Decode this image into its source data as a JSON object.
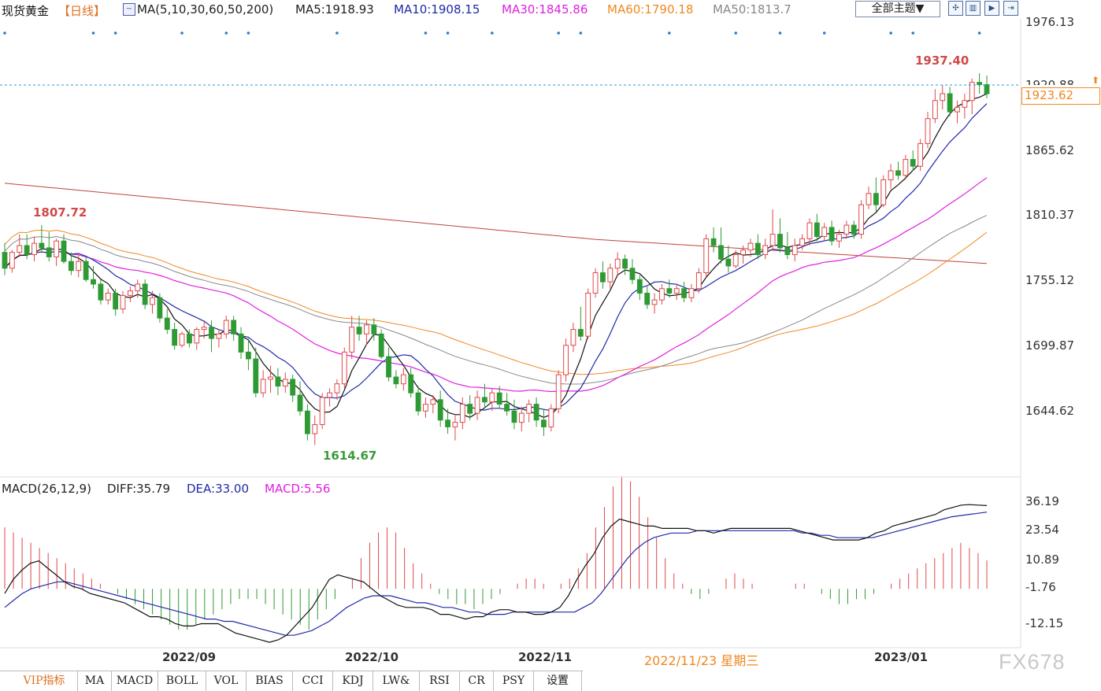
{
  "header": {
    "symbol": "现货黄金",
    "period": "【日线】",
    "ma_label": "MA(5,10,30,60,50,200)",
    "ma5": "MA5:1918.93",
    "ma10": "MA10:1908.15",
    "ma30": "MA30:1845.86",
    "ma60": "MA60:1790.18",
    "ma50": "MA50:1813.7",
    "theme_button": "全部主题▼"
  },
  "macd_header": {
    "label": "MACD(26,12,9)",
    "diff": "DIFF:35.79",
    "dea": "DEA:33.00",
    "macd": "MACD:5.56"
  },
  "colors": {
    "up": "#e0484a",
    "down": "#2e9a34",
    "ma5": "#111111",
    "ma10": "#1f2aa8",
    "ma30": "#e020e0",
    "ma60": "#f08820",
    "ma50": "#888888",
    "ma200": "#c0443a",
    "current_line": "#2a9ad0",
    "current_box": "#f08820"
  },
  "price_axis": {
    "ticks": [
      "1976.13",
      "1865.62",
      "1810.37",
      "1755.12",
      "1699.87",
      "1644.62"
    ],
    "min": 1590,
    "max": 1990
  },
  "current_price": "1923.62",
  "hidden_tick": "1920.88",
  "macd_axis": {
    "ticks": [
      "36.19",
      "23.54",
      "10.89",
      "-1.76",
      "-12.15"
    ],
    "min": -25,
    "max": 40
  },
  "x_labels": [
    "2022/09",
    "2022/10",
    "2022/11",
    "2023/01"
  ],
  "crosshair_date": "2022/11/23 星期三",
  "tabs": [
    "VIP指标",
    "MA",
    "MACD",
    "BOLL",
    "VOL",
    "BIAS",
    "CCI",
    "KDJ",
    "LW&",
    "RSI",
    "CR",
    "PSY",
    "设置"
  ],
  "watermark": "FX678",
  "chart_data": {
    "type": "candlestick",
    "annotations": [
      {
        "label": "1807.72",
        "value": 1807.72
      },
      {
        "label": "1614.67",
        "value": 1614.67
      },
      {
        "label": "1937.40",
        "value": 1937.4
      }
    ],
    "ohlc": [
      [
        1784,
        1792,
        1764,
        1770
      ],
      [
        1770,
        1786,
        1766,
        1784
      ],
      [
        1784,
        1800,
        1780,
        1790
      ],
      [
        1790,
        1800,
        1778,
        1782
      ],
      [
        1782,
        1798,
        1776,
        1792
      ],
      [
        1792,
        1808,
        1784,
        1788
      ],
      [
        1788,
        1802,
        1776,
        1780
      ],
      [
        1780,
        1796,
        1772,
        1794
      ],
      [
        1794,
        1800,
        1774,
        1776
      ],
      [
        1776,
        1784,
        1764,
        1768
      ],
      [
        1768,
        1782,
        1762,
        1776
      ],
      [
        1776,
        1780,
        1758,
        1760
      ],
      [
        1760,
        1772,
        1752,
        1756
      ],
      [
        1756,
        1760,
        1738,
        1742
      ],
      [
        1742,
        1752,
        1738,
        1748
      ],
      [
        1748,
        1752,
        1728,
        1734
      ],
      [
        1734,
        1750,
        1730,
        1746
      ],
      [
        1746,
        1754,
        1740,
        1750
      ],
      [
        1750,
        1760,
        1744,
        1756
      ],
      [
        1756,
        1760,
        1734,
        1738
      ],
      [
        1738,
        1750,
        1730,
        1744
      ],
      [
        1744,
        1748,
        1722,
        1726
      ],
      [
        1726,
        1734,
        1712,
        1716
      ],
      [
        1716,
        1722,
        1698,
        1702
      ],
      [
        1702,
        1714,
        1700,
        1712
      ],
      [
        1712,
        1716,
        1700,
        1704
      ],
      [
        1704,
        1718,
        1698,
        1716
      ],
      [
        1716,
        1724,
        1708,
        1718
      ],
      [
        1718,
        1724,
        1696,
        1708
      ],
      [
        1708,
        1716,
        1700,
        1712
      ],
      [
        1712,
        1728,
        1708,
        1724
      ],
      [
        1724,
        1728,
        1706,
        1712
      ],
      [
        1712,
        1718,
        1690,
        1696
      ],
      [
        1696,
        1708,
        1680,
        1690
      ],
      [
        1690,
        1700,
        1656,
        1660
      ],
      [
        1660,
        1680,
        1656,
        1672
      ],
      [
        1672,
        1684,
        1660,
        1674
      ],
      [
        1674,
        1682,
        1658,
        1666
      ],
      [
        1666,
        1678,
        1660,
        1672
      ],
      [
        1672,
        1676,
        1652,
        1658
      ],
      [
        1658,
        1670,
        1640,
        1644
      ],
      [
        1644,
        1650,
        1618,
        1624
      ],
      [
        1624,
        1640,
        1614,
        1632
      ],
      [
        1632,
        1660,
        1628,
        1656
      ],
      [
        1656,
        1664,
        1648,
        1660
      ],
      [
        1660,
        1672,
        1654,
        1668
      ],
      [
        1668,
        1700,
        1664,
        1696
      ],
      [
        1696,
        1728,
        1690,
        1718
      ],
      [
        1718,
        1728,
        1706,
        1712
      ],
      [
        1712,
        1724,
        1702,
        1720
      ],
      [
        1720,
        1726,
        1706,
        1712
      ],
      [
        1712,
        1716,
        1690,
        1692
      ],
      [
        1692,
        1700,
        1670,
        1674
      ],
      [
        1674,
        1680,
        1664,
        1668
      ],
      [
        1668,
        1682,
        1662,
        1676
      ],
      [
        1676,
        1682,
        1656,
        1660
      ],
      [
        1660,
        1666,
        1640,
        1644
      ],
      [
        1644,
        1656,
        1638,
        1650
      ],
      [
        1650,
        1658,
        1642,
        1654
      ],
      [
        1654,
        1662,
        1630,
        1636
      ],
      [
        1636,
        1646,
        1624,
        1630
      ],
      [
        1630,
        1640,
        1618,
        1634
      ],
      [
        1634,
        1656,
        1628,
        1650
      ],
      [
        1650,
        1658,
        1636,
        1642
      ],
      [
        1642,
        1662,
        1636,
        1656
      ],
      [
        1656,
        1668,
        1646,
        1652
      ],
      [
        1652,
        1664,
        1644,
        1660
      ],
      [
        1660,
        1666,
        1646,
        1650
      ],
      [
        1650,
        1660,
        1640,
        1644
      ],
      [
        1644,
        1654,
        1628,
        1634
      ],
      [
        1634,
        1648,
        1626,
        1642
      ],
      [
        1642,
        1654,
        1634,
        1650
      ],
      [
        1650,
        1656,
        1630,
        1636
      ],
      [
        1636,
        1646,
        1622,
        1630
      ],
      [
        1630,
        1650,
        1626,
        1646
      ],
      [
        1646,
        1680,
        1642,
        1676
      ],
      [
        1676,
        1708,
        1670,
        1702
      ],
      [
        1702,
        1722,
        1696,
        1716
      ],
      [
        1716,
        1736,
        1706,
        1710
      ],
      [
        1710,
        1752,
        1708,
        1748
      ],
      [
        1748,
        1770,
        1744,
        1766
      ],
      [
        1766,
        1776,
        1752,
        1758
      ],
      [
        1758,
        1774,
        1752,
        1770
      ],
      [
        1770,
        1784,
        1764,
        1778
      ],
      [
        1778,
        1782,
        1764,
        1770
      ],
      [
        1770,
        1778,
        1756,
        1760
      ],
      [
        1760,
        1764,
        1742,
        1748
      ],
      [
        1748,
        1754,
        1734,
        1738
      ],
      [
        1738,
        1748,
        1730,
        1742
      ],
      [
        1742,
        1756,
        1738,
        1752
      ],
      [
        1752,
        1760,
        1744,
        1748
      ],
      [
        1748,
        1756,
        1742,
        1752
      ],
      [
        1752,
        1758,
        1740,
        1744
      ],
      [
        1744,
        1756,
        1740,
        1752
      ],
      [
        1752,
        1770,
        1748,
        1766
      ],
      [
        1766,
        1800,
        1762,
        1796
      ],
      [
        1796,
        1806,
        1784,
        1790
      ],
      [
        1790,
        1806,
        1774,
        1778
      ],
      [
        1778,
        1790,
        1766,
        1772
      ],
      [
        1772,
        1786,
        1770,
        1782
      ],
      [
        1782,
        1790,
        1774,
        1786
      ],
      [
        1786,
        1796,
        1780,
        1792
      ],
      [
        1792,
        1800,
        1778,
        1782
      ],
      [
        1782,
        1796,
        1778,
        1790
      ],
      [
        1790,
        1822,
        1786,
        1800
      ],
      [
        1800,
        1814,
        1784,
        1788
      ],
      [
        1788,
        1802,
        1778,
        1782
      ],
      [
        1782,
        1796,
        1776,
        1790
      ],
      [
        1790,
        1800,
        1786,
        1796
      ],
      [
        1796,
        1814,
        1790,
        1810
      ],
      [
        1810,
        1818,
        1794,
        1798
      ],
      [
        1798,
        1810,
        1794,
        1806
      ],
      [
        1806,
        1812,
        1790,
        1794
      ],
      [
        1794,
        1804,
        1788,
        1800
      ],
      [
        1800,
        1812,
        1796,
        1808
      ],
      [
        1808,
        1812,
        1796,
        1800
      ],
      [
        1800,
        1830,
        1796,
        1826
      ],
      [
        1826,
        1842,
        1822,
        1836
      ],
      [
        1836,
        1850,
        1820,
        1826
      ],
      [
        1826,
        1852,
        1824,
        1848
      ],
      [
        1848,
        1862,
        1840,
        1856
      ],
      [
        1856,
        1864,
        1848,
        1852
      ],
      [
        1852,
        1870,
        1848,
        1866
      ],
      [
        1866,
        1874,
        1856,
        1860
      ],
      [
        1860,
        1884,
        1856,
        1880
      ],
      [
        1880,
        1908,
        1876,
        1902
      ],
      [
        1902,
        1928,
        1898,
        1918
      ],
      [
        1918,
        1932,
        1910,
        1924
      ],
      [
        1924,
        1930,
        1904,
        1908
      ],
      [
        1908,
        1918,
        1898,
        1912
      ],
      [
        1912,
        1924,
        1902,
        1918
      ],
      [
        1918,
        1937.4,
        1906,
        1934
      ],
      [
        1934,
        1942,
        1924,
        1932
      ],
      [
        1932,
        1940,
        1920,
        1924
      ]
    ],
    "diff": [
      -2,
      4,
      8,
      11,
      12,
      9,
      6,
      3,
      1,
      0,
      -2,
      -3,
      -4,
      -5,
      -6,
      -8,
      -10,
      -12,
      -12,
      -13,
      -15,
      -16,
      -16,
      -15,
      -15,
      -15,
      -17,
      -19,
      -20,
      -21,
      -22,
      -23,
      -22,
      -20,
      -16,
      -12,
      -8,
      -2,
      4,
      6,
      5,
      4,
      3,
      0,
      -3,
      -5,
      -7,
      -8,
      -8,
      -8,
      -9,
      -11,
      -11,
      -12,
      -13,
      -12,
      -12,
      -10,
      -9,
      -9,
      -10,
      -10,
      -11,
      -11,
      -10,
      -8,
      -3,
      4,
      10,
      15,
      22,
      27,
      30,
      29,
      28,
      27,
      27,
      26,
      26,
      26,
      26,
      25,
      25,
      24,
      25,
      26,
      26,
      26,
      26,
      26,
      26,
      26,
      26,
      25,
      24,
      23,
      22,
      21,
      21,
      21,
      21,
      22,
      24,
      25,
      27,
      28,
      29,
      30,
      31,
      32,
      34,
      35,
      36,
      36.2,
      36,
      35.8
    ],
    "dea": [
      -8,
      -5,
      -2,
      0,
      1,
      2,
      3,
      3,
      2,
      1,
      0,
      -1,
      -2,
      -3,
      -4,
      -5,
      -6,
      -7,
      -8,
      -9,
      -10,
      -11,
      -12,
      -13,
      -13,
      -14,
      -14,
      -15,
      -16,
      -17,
      -18,
      -19,
      -20,
      -20,
      -19,
      -18,
      -16,
      -14,
      -11,
      -8,
      -6,
      -4,
      -3,
      -3,
      -3,
      -4,
      -5,
      -6,
      -6,
      -7,
      -8,
      -8,
      -9,
      -10,
      -10,
      -11,
      -11,
      -11,
      -10,
      -10,
      -10,
      -10,
      -10,
      -10,
      -10,
      -10,
      -8,
      -6,
      -2,
      3,
      8,
      13,
      17,
      20,
      22,
      23,
      24,
      24,
      24,
      25,
      25,
      25,
      25,
      25,
      25,
      25,
      25,
      25,
      25,
      25,
      25,
      24,
      24,
      23,
      23,
      22,
      22,
      22,
      22,
      22,
      23,
      24,
      25,
      26,
      27,
      28,
      29,
      30,
      31,
      31.5,
      32,
      32.5,
      33
    ],
    "macd_hist": [
      12,
      11,
      10,
      9,
      8,
      7,
      6,
      5,
      4,
      3,
      2,
      1,
      0,
      -1,
      -2,
      -3,
      -4,
      -5,
      -6,
      -7,
      -8,
      -8,
      -7,
      -6,
      -5,
      -4,
      -3,
      -2,
      -2,
      -2,
      -3,
      -4,
      -5,
      -6,
      -7,
      -8,
      -6,
      -4,
      -2,
      0,
      2,
      6,
      9,
      11,
      12,
      11,
      8,
      5,
      3,
      1,
      -1,
      -2,
      -3,
      -3,
      -4,
      -3,
      -2,
      -1,
      0,
      1,
      2,
      2,
      1,
      0,
      1,
      2,
      4,
      7,
      12,
      16,
      20,
      22,
      21,
      18,
      14,
      10,
      6,
      3,
      1,
      -1,
      -2,
      -1,
      0,
      2,
      3,
      2,
      1,
      0,
      0,
      0,
      0,
      1,
      1,
      0,
      -1,
      -2,
      -3,
      -3,
      -2,
      -2,
      -1,
      0,
      1,
      2,
      3,
      4,
      5,
      6,
      7,
      8,
      9,
      8,
      7,
      5.56
    ]
  }
}
